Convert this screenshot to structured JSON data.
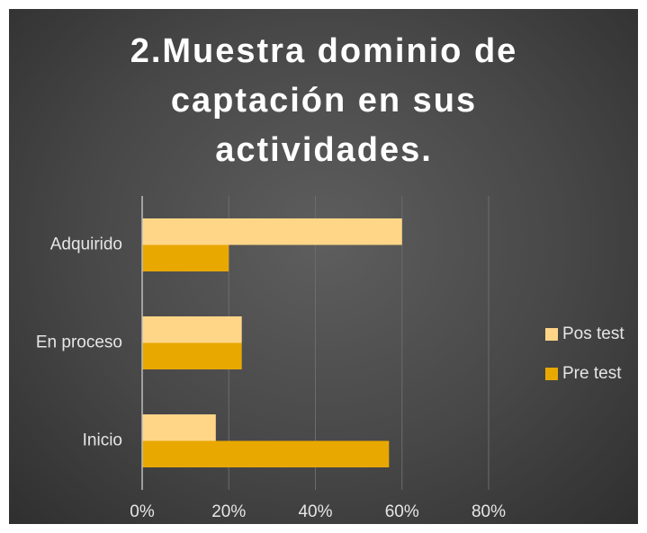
{
  "chart_data": {
    "type": "barh",
    "title": "2.Muestra dominio de captación en sus actividades.",
    "categories": [
      "Adquirido",
      "En proceso",
      "Inicio"
    ],
    "series": [
      {
        "name": "Pos test",
        "color": "#ffd688",
        "values": [
          60,
          23,
          17
        ]
      },
      {
        "name": "Pre test",
        "color": "#e8a800",
        "values": [
          20,
          23,
          57
        ]
      }
    ],
    "xlim": [
      0,
      80
    ],
    "xticks": [
      {
        "value": 0,
        "label": "0%"
      },
      {
        "value": 20,
        "label": "20%"
      },
      {
        "value": 40,
        "label": "40%"
      },
      {
        "value": 60,
        "label": "60%"
      },
      {
        "value": 80,
        "label": "80%"
      }
    ],
    "grid": true,
    "legend": "right"
  }
}
